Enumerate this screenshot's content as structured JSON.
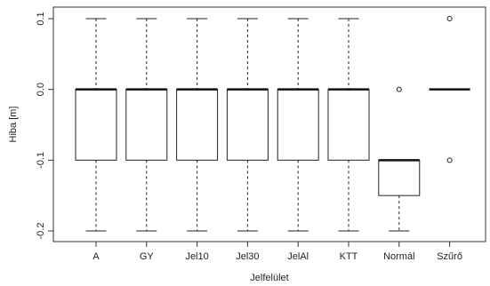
{
  "chart_data": {
    "type": "boxplot",
    "xlabel": "Jelfelület",
    "ylabel": "Hiba [m]",
    "ylim": [
      -0.2,
      0.1
    ],
    "yticks": [
      "0.1",
      "0.0",
      "-0.1",
      "-0.2"
    ],
    "grid": false,
    "categories": [
      "A",
      "GY",
      "Jel10",
      "Jel30",
      "JelAl",
      "KTT",
      "Normál",
      "Szűrő"
    ],
    "boxes": [
      {
        "name": "A",
        "whisker_low": -0.2,
        "q1": -0.1,
        "median": 0.0,
        "q3": 0.0,
        "whisker_high": 0.1,
        "outliers": []
      },
      {
        "name": "GY",
        "whisker_low": -0.2,
        "q1": -0.1,
        "median": 0.0,
        "q3": 0.0,
        "whisker_high": 0.1,
        "outliers": []
      },
      {
        "name": "Jel10",
        "whisker_low": -0.2,
        "q1": -0.1,
        "median": 0.0,
        "q3": 0.0,
        "whisker_high": 0.1,
        "outliers": []
      },
      {
        "name": "Jel30",
        "whisker_low": -0.2,
        "q1": -0.1,
        "median": 0.0,
        "q3": 0.0,
        "whisker_high": 0.1,
        "outliers": []
      },
      {
        "name": "JelAl",
        "whisker_low": -0.2,
        "q1": -0.1,
        "median": 0.0,
        "q3": 0.0,
        "whisker_high": 0.1,
        "outliers": []
      },
      {
        "name": "KTT",
        "whisker_low": -0.2,
        "q1": -0.1,
        "median": 0.0,
        "q3": 0.0,
        "whisker_high": 0.1,
        "outliers": []
      },
      {
        "name": "Normál",
        "whisker_low": -0.2,
        "q1": -0.15,
        "median": -0.1,
        "q3": -0.1,
        "whisker_high": -0.1,
        "outliers": [
          0.0
        ]
      },
      {
        "name": "Szűrő",
        "whisker_low": 0.0,
        "q1": 0.0,
        "median": 0.0,
        "q3": 0.0,
        "whisker_high": 0.0,
        "outliers": [
          0.1,
          -0.1
        ]
      }
    ]
  }
}
